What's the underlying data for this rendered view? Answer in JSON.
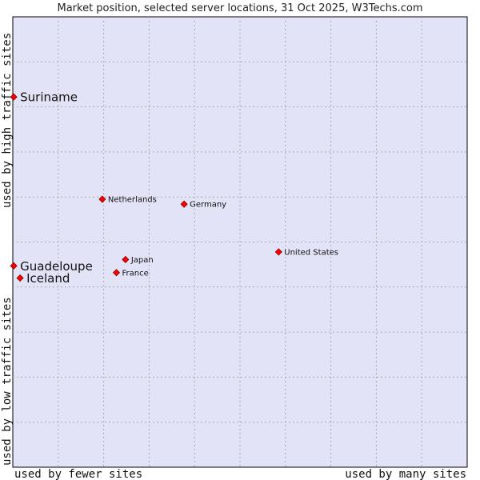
{
  "chart_data": {
    "type": "scatter",
    "title": "Market position, selected server locations, 31 Oct 2025, W3Techs.com",
    "xlabel_left": "used by fewer sites",
    "xlabel_right": "used by many sites",
    "ylabel_bottom": "used by low traffic sites",
    "ylabel_top": "used by high traffic sites",
    "xlim": [
      0,
      100
    ],
    "ylim": [
      0,
      100
    ],
    "grid": true,
    "points": [
      {
        "label": "Suriname",
        "x": 0.2,
        "y": 82.2,
        "highlight": true
      },
      {
        "label": "Netherlands",
        "x": 19.7,
        "y": 59.5,
        "highlight": false
      },
      {
        "label": "Germany",
        "x": 37.7,
        "y": 58.4,
        "highlight": false
      },
      {
        "label": "United States",
        "x": 58.5,
        "y": 47.8,
        "highlight": false
      },
      {
        "label": "Japan",
        "x": 24.8,
        "y": 46.1,
        "highlight": false
      },
      {
        "label": "Guadeloupe",
        "x": 0.2,
        "y": 44.7,
        "highlight": true
      },
      {
        "label": "France",
        "x": 22.8,
        "y": 43.2,
        "highlight": false
      },
      {
        "label": "Iceland",
        "x": 1.6,
        "y": 42.0,
        "highlight": true
      }
    ]
  },
  "colors": {
    "plot_bg": "#e3e3f8",
    "grid": "#aaaaaa",
    "marker": "#ff0000",
    "marker_stroke": "#880000"
  }
}
